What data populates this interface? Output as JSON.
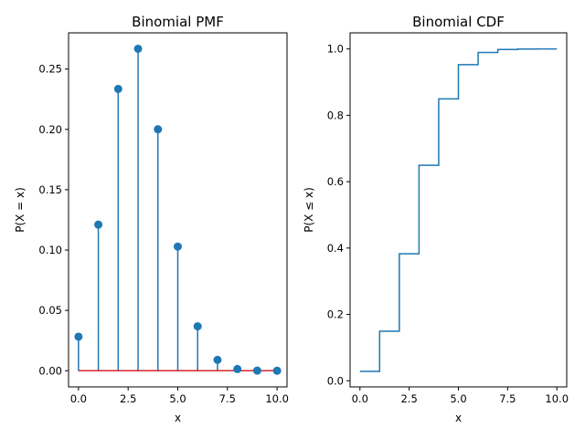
{
  "chart_data": [
    {
      "type": "stem",
      "title": "Binomial PMF",
      "xlabel": "x",
      "ylabel": "P(X = x)",
      "xlim": [
        -0.5,
        10.5
      ],
      "ylim": [
        -0.0134,
        0.28
      ],
      "xticks": [
        0,
        2.5,
        5,
        7.5,
        10
      ],
      "xtick_labels": [
        "0.0",
        "2.5",
        "5.0",
        "7.5",
        "10.0"
      ],
      "yticks": [
        0,
        0.05,
        0.1,
        0.15,
        0.2,
        0.25
      ],
      "ytick_labels": [
        "0.00",
        "0.05",
        "0.10",
        "0.15",
        "0.20",
        "0.25"
      ],
      "x": [
        0,
        1,
        2,
        3,
        4,
        5,
        6,
        7,
        8,
        9,
        10
      ],
      "y": [
        0.0282,
        0.1211,
        0.2335,
        0.2668,
        0.2001,
        0.1029,
        0.0368,
        0.009,
        0.0014,
        0.0001,
        0.0
      ],
      "grid": false
    },
    {
      "type": "step",
      "title": "Binomial CDF",
      "xlabel": "x",
      "ylabel": "P(X ≤ x)",
      "xlim": [
        -0.5,
        10.5
      ],
      "ylim": [
        -0.0185,
        1.0486
      ],
      "xticks": [
        0,
        2.5,
        5,
        7.5,
        10
      ],
      "xtick_labels": [
        "0.0",
        "2.5",
        "5.0",
        "7.5",
        "10.0"
      ],
      "yticks": [
        0,
        0.2,
        0.4,
        0.6,
        0.8,
        1.0
      ],
      "ytick_labels": [
        "0.0",
        "0.2",
        "0.4",
        "0.6",
        "0.8",
        "1.0"
      ],
      "x": [
        0,
        1,
        2,
        3,
        4,
        5,
        6,
        7,
        8,
        9,
        10
      ],
      "y": [
        0.0282,
        0.1493,
        0.3828,
        0.6496,
        0.8497,
        0.9527,
        0.9894,
        0.9984,
        0.9999,
        1.0,
        1.0
      ],
      "grid": false
    }
  ],
  "colors": {
    "series": "#1f77b4",
    "baseline": "#d62728",
    "axes": "#000000"
  }
}
